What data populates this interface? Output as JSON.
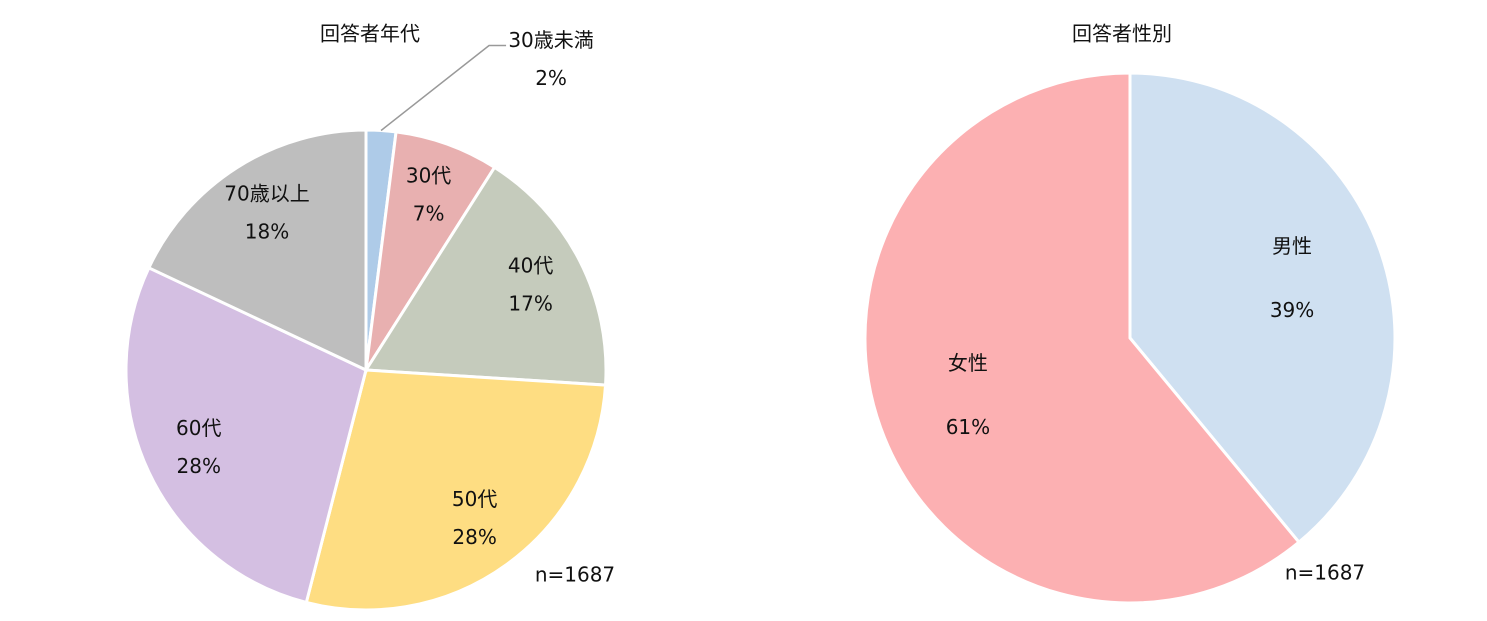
{
  "chart_data": [
    {
      "type": "pie",
      "title": "回答者年代",
      "categories": [
        "30歳未満",
        "30代",
        "40代",
        "50代",
        "60代",
        "70歳以上"
      ],
      "values": [
        2,
        7,
        17,
        28,
        28,
        18
      ],
      "value_labels": [
        "2%",
        "7%",
        "17%",
        "28%",
        "28%",
        "18%"
      ],
      "colors": [
        "#aecbe8",
        "#e8b0b0",
        "#c5cbbc",
        "#fedd82",
        "#d4bfe2",
        "#bebebe"
      ],
      "annotation": "n=1687"
    },
    {
      "type": "pie",
      "title": "回答者性別",
      "categories": [
        "男性",
        "女性"
      ],
      "values": [
        39,
        61
      ],
      "value_labels": [
        "39%",
        "61%"
      ],
      "colors": [
        "#cfe0f1",
        "#fcb0b2"
      ],
      "annotation": "n=1687"
    }
  ]
}
